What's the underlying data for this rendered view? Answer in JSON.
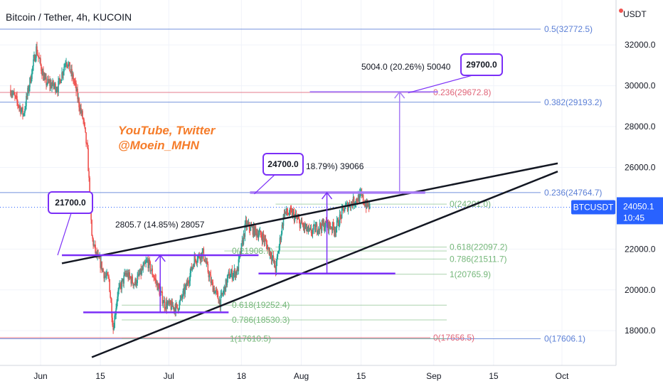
{
  "header": {
    "title": "Bitcoin / Tether, 4h, KUCOIN"
  },
  "colors": {
    "up": "#26a69a",
    "down": "#ef5350",
    "fib_blue": "#5b7fd6",
    "fib_green": "#75b77a",
    "fib_red": "#e06478",
    "purple": "#7b2ff7",
    "purple_light": "#a77bf5",
    "badge": "#2962ff",
    "brand": "#f57c2a"
  },
  "chart_data": {
    "type": "candlestick",
    "title": "Bitcoin / Tether, 4h, KUCOIN",
    "y_unit": "USDT",
    "ylim": [
      16300,
      34200
    ],
    "y_ticks": [
      "32000.0",
      "30000.0",
      "28000.0",
      "26000.0",
      "22000.0",
      "20000.0",
      "18000.0"
    ],
    "x_ticks": [
      "Jun",
      "15",
      "Jul",
      "18",
      "Aug",
      "15",
      "Sep",
      "15",
      "Oct"
    ],
    "x_dates": [
      "2022-06-01",
      "2022-06-15",
      "2022-07-01",
      "2022-07-18",
      "2022-08-01",
      "2022-08-15",
      "2022-09-01",
      "2022-09-15",
      "2022-10-01"
    ],
    "grid": true,
    "price_path": [
      [
        "2022-05-25",
        29800
      ],
      [
        "2022-05-28",
        28600
      ],
      [
        "2022-05-31",
        31800
      ],
      [
        "2022-06-02",
        30200
      ],
      [
        "2022-06-05",
        29900
      ],
      [
        "2022-06-07",
        31300
      ],
      [
        "2022-06-09",
        30100
      ],
      [
        "2022-06-10",
        29100
      ],
      [
        "2022-06-11",
        28300
      ],
      [
        "2022-06-12",
        26700
      ],
      [
        "2022-06-13",
        22600
      ],
      [
        "2022-06-14",
        21700
      ],
      [
        "2022-06-15",
        21300
      ],
      [
        "2022-06-16",
        20700
      ],
      [
        "2022-06-17",
        20500
      ],
      [
        "2022-06-18",
        18100
      ],
      [
        "2022-06-19",
        19800
      ],
      [
        "2022-06-21",
        20800
      ],
      [
        "2022-06-23",
        20300
      ],
      [
        "2022-06-26",
        21400
      ],
      [
        "2022-06-28",
        20400
      ],
      [
        "2022-06-30",
        19300
      ],
      [
        "2022-07-03",
        19100
      ],
      [
        "2022-07-05",
        20100
      ],
      [
        "2022-07-07",
        21500
      ],
      [
        "2022-07-09",
        21800
      ],
      [
        "2022-07-11",
        20300
      ],
      [
        "2022-07-13",
        19400
      ],
      [
        "2022-07-15",
        20700
      ],
      [
        "2022-07-17",
        20900
      ],
      [
        "2022-07-19",
        23200
      ],
      [
        "2022-07-21",
        22900
      ],
      [
        "2022-07-23",
        22600
      ],
      [
        "2022-07-25",
        21700
      ],
      [
        "2022-07-26",
        21000
      ],
      [
        "2022-07-28",
        23800
      ],
      [
        "2022-07-30",
        23700
      ],
      [
        "2022-08-01",
        23200
      ],
      [
        "2022-08-03",
        22800
      ],
      [
        "2022-08-05",
        23100
      ],
      [
        "2022-08-07",
        23200
      ],
      [
        "2022-08-09",
        23000
      ],
      [
        "2022-08-11",
        24000
      ],
      [
        "2022-08-13",
        24300
      ],
      [
        "2022-08-15",
        24600
      ],
      [
        "2022-08-16",
        24200
      ],
      [
        "2022-08-17",
        24050
      ]
    ],
    "last_price": {
      "symbol": "BTCUSDT",
      "price": "24050.1",
      "countdown": "10:45",
      "value": 24050.1
    },
    "fib_labels": [
      {
        "text": "0.5(32772.5)",
        "value": 32772.5,
        "color": "blue",
        "line_from": "2022-05-25"
      },
      {
        "text": "0.382(29193.2)",
        "value": 29193.2,
        "color": "blue",
        "line_from": "2022-05-25"
      },
      {
        "text": "0.236(24764.7)",
        "value": 24764.7,
        "color": "blue",
        "line_from": "2022-05-25"
      },
      {
        "text": "0(17606.1)",
        "value": 17606.1,
        "color": "blue",
        "line_from": "2022-05-25"
      },
      {
        "text": "0.236(29672.8)",
        "value": 29672.8,
        "color": "red",
        "line_from": "2022-05-25"
      },
      {
        "text": "0(17656.5)",
        "value": 17656.5,
        "color": "red",
        "line_from": "2022-05-25"
      },
      {
        "text": "0(24201.0)",
        "value": 24201.0,
        "color": "green",
        "line_from": "2022-07-26"
      },
      {
        "text": "0.618(22097.2)",
        "value": 22097.2,
        "color": "green",
        "line_from": "2022-07-26"
      },
      {
        "text": "0.786(21511.7)",
        "value": 21511.7,
        "color": "green",
        "line_from": "2022-07-26"
      },
      {
        "text": "1(20765.9)",
        "value": 20765.9,
        "color": "green",
        "line_from": "2022-07-26"
      },
      {
        "text": "0(21908.7)",
        "value": 21908.7,
        "color": "green",
        "line_from": "2022-07-14"
      },
      {
        "text": "0.618(19252.4)",
        "value": 19252.4,
        "color": "green",
        "line_from": "2022-06-20"
      },
      {
        "text": "0.786(18530.3)",
        "value": 18530.3,
        "color": "green",
        "line_from": "2022-06-20"
      },
      {
        "text": "1(17610.5)",
        "value": 17610.5,
        "color": "green",
        "line_from": "2022-06-20"
      }
    ],
    "trendlines": [
      {
        "name": "upper-wedge",
        "from": [
          "2022-06-06",
          21300
        ],
        "to": [
          "2022-09-30",
          26200
        ]
      },
      {
        "name": "lower-wedge",
        "from": [
          "2022-06-13",
          16700
        ],
        "to": [
          "2022-09-30",
          25800
        ]
      }
    ],
    "horizontal_levels": [
      {
        "value": 21700,
        "from": "2022-06-06",
        "to": "2022-07-22"
      },
      {
        "value": 18900,
        "from": "2022-06-11",
        "to": "2022-07-15"
      },
      {
        "value": 24764.7,
        "from": "2022-07-20",
        "to": "2022-08-30"
      },
      {
        "value": 20800,
        "from": "2022-07-22",
        "to": "2022-08-23"
      }
    ],
    "measures": [
      {
        "text": "2805.7 (14.85%) 28057",
        "value": 2805.7,
        "percent": 14.85,
        "from": [
          "2022-06-29",
          18900
        ],
        "to": [
          "2022-06-29",
          21700
        ]
      },
      {
        "text": "18.79%) 39066",
        "percent": 18.79,
        "from": [
          "2022-08-07",
          20800
        ],
        "to": [
          "2022-08-07",
          24764.7
        ]
      },
      {
        "text": "5004.0 (20.26%) 50040",
        "value": 5004.0,
        "percent": 20.26,
        "from": [
          "2022-08-24",
          24700
        ],
        "to": [
          "2022-08-24",
          29700
        ]
      }
    ],
    "callouts": [
      {
        "text": "21700.0",
        "value": 21700,
        "at": "2022-06-05"
      },
      {
        "text": "24700.0",
        "value": 24700,
        "at": "2022-07-26"
      },
      {
        "text": "29700.0",
        "value": 29700,
        "at": "2022-08-28"
      }
    ],
    "annotation_lines": [
      "YouTube, Twitter",
      "@Moein_MHN"
    ]
  }
}
